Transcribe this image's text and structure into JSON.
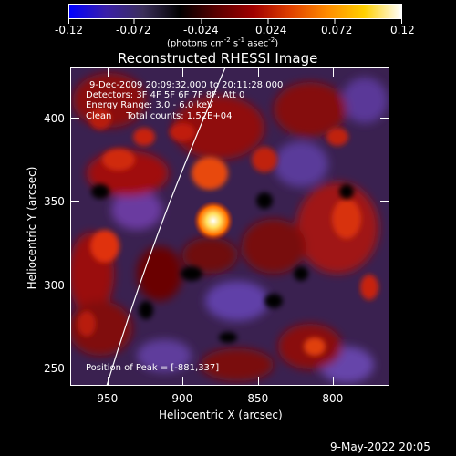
{
  "colorbar": {
    "tick_labels": [
      "-0.12",
      "-0.072",
      "-0.024",
      "0.024",
      "0.072",
      "0.12"
    ],
    "units_parts": [
      "(photons cm",
      "-2",
      " s",
      "-1",
      " asec",
      "-2",
      ")"
    ],
    "gradient_colors": [
      "#0000ff",
      "#3a1fa8",
      "#3b2f5a",
      "#000000",
      "#5a0000",
      "#a00000",
      "#e04000",
      "#ff8c00",
      "#ffd000",
      "#ffffff"
    ]
  },
  "plot": {
    "title": "Reconstructed RHESSI Image",
    "xlabel": "Heliocentric X (arcsec)",
    "ylabel": "Heliocentric Y (arcsec)",
    "x_ticks": [
      "-950",
      "-900",
      "-850",
      "-800"
    ],
    "y_ticks": [
      "400",
      "350",
      "300",
      "250"
    ],
    "info_lines": [
      "9-Dec-2009 20:09:32.000 to 20:11:28.000",
      "Detectors: 3F 4F 5F 6F 7F 8F, Att 0",
      "Energy Range: 3.0 - 6.0 keV",
      "Clean     Total counts: 1.52E+04"
    ],
    "peak_text": "Position of Peak = [-881,337]"
  },
  "footer": {
    "timestamp": "9-May-2022 20:05"
  }
}
